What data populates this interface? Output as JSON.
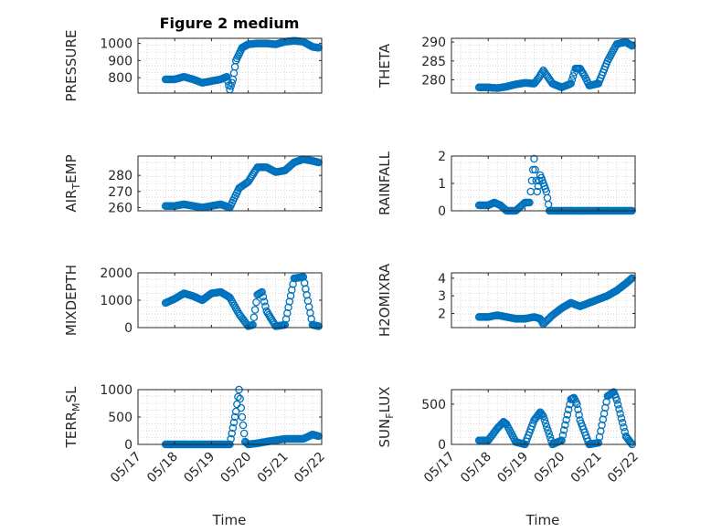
{
  "figure_title": "Figure 2 medium",
  "xlabel": "Time",
  "x_ticks": [
    "05/17",
    "05/18",
    "05/19",
    "05/20",
    "05/21",
    "05/22"
  ],
  "marker_color": "#0072BD",
  "chart_data": [
    {
      "type": "scatter",
      "ylabel": "PRESSURE",
      "ylim": [
        710,
        1030
      ],
      "yticks": [
        "1000",
        "900",
        "800"
      ],
      "ytick_values": [
        1000,
        900,
        800
      ],
      "xlim": [
        "05/17",
        "05/22"
      ],
      "grid": true,
      "x": [
        "05/17 18:00",
        "05/18 00:00",
        "05/18 06:00",
        "05/18 12:00",
        "05/18 18:00",
        "05/19 00:00",
        "05/19 06:00",
        "05/19 10:00",
        "05/19 12:00",
        "05/19 14:00",
        "05/19 16:00",
        "05/19 20:00",
        "05/20 00:00",
        "05/20 06:00",
        "05/20 12:00",
        "05/20 18:00",
        "05/21 00:00",
        "05/21 06:00",
        "05/21 12:00",
        "05/21 18:00",
        "05/21 22:00"
      ],
      "values": [
        790,
        790,
        805,
        790,
        770,
        780,
        790,
        805,
        730,
        790,
        900,
        975,
        995,
        1000,
        1000,
        995,
        1010,
        1015,
        1010,
        980,
        975
      ]
    },
    {
      "type": "scatter",
      "ylabel": "THETA",
      "ylim": [
        276.5,
        291
      ],
      "yticks": [
        "290",
        "285",
        "280"
      ],
      "ytick_values": [
        290,
        285,
        280
      ],
      "xlim": [
        "05/17",
        "05/22"
      ],
      "grid": true,
      "x": [
        "05/17 18:00",
        "05/18 00:00",
        "05/18 06:00",
        "05/18 12:00",
        "05/18 18:00",
        "05/19 00:00",
        "05/19 06:00",
        "05/19 09:00",
        "05/19 12:00",
        "05/19 18:00",
        "05/20 00:00",
        "05/20 06:00",
        "05/20 09:00",
        "05/20 12:00",
        "05/20 15:00",
        "05/20 18:00",
        "05/21 00:00",
        "05/21 06:00",
        "05/21 12:00",
        "05/21 18:00",
        "05/21 22:00"
      ],
      "values": [
        278,
        278,
        277.8,
        278.2,
        278.8,
        279.2,
        279,
        280.5,
        282.5,
        279,
        278,
        279,
        283,
        283,
        281,
        278.5,
        279,
        285,
        289.5,
        290,
        289
      ]
    },
    {
      "type": "scatter",
      "ylabel": "AIR_TEMP",
      "ylim": [
        258,
        292
      ],
      "yticks": [
        "280",
        "270",
        "260"
      ],
      "ytick_values": [
        280,
        270,
        260
      ],
      "xlim": [
        "05/17",
        "05/22"
      ],
      "grid": true,
      "x": [
        "05/17 18:00",
        "05/18 00:00",
        "05/18 06:00",
        "05/18 12:00",
        "05/18 18:00",
        "05/19 00:00",
        "05/19 06:00",
        "05/19 12:00",
        "05/19 18:00",
        "05/20 00:00",
        "05/20 06:00",
        "05/20 12:00",
        "05/20 18:00",
        "05/21 00:00",
        "05/21 06:00",
        "05/21 12:00",
        "05/21 18:00",
        "05/21 22:00"
      ],
      "values": [
        261,
        261,
        262,
        261,
        260,
        261,
        262,
        260,
        272,
        276,
        285,
        285,
        282,
        283,
        288,
        290,
        289,
        288
      ]
    },
    {
      "type": "scatter",
      "ylabel": "RAINFALL",
      "ylim": [
        0,
        2
      ],
      "yticks": [
        "2",
        "1",
        "0"
      ],
      "ytick_values": [
        2,
        1,
        0
      ],
      "xlim": [
        "05/17",
        "05/22"
      ],
      "grid": true,
      "x": [
        "05/17 18:00",
        "05/18 00:00",
        "05/18 04:00",
        "05/18 08:00",
        "05/18 12:00",
        "05/18 18:00",
        "05/19 00:00",
        "05/19 03:00",
        "05/19 06:00",
        "05/19 08:00",
        "05/19 10:00",
        "05/19 12:00",
        "05/19 14:00",
        "05/19 16:00",
        "05/19 18:00",
        "05/20 00:00",
        "05/20 12:00",
        "05/21 00:00",
        "05/21 12:00",
        "05/21 22:00"
      ],
      "values": [
        0.2,
        0.2,
        0.3,
        0.2,
        0,
        0,
        0.3,
        0.3,
        1.9,
        0.7,
        1.3,
        1.0,
        0.7,
        0,
        0,
        0,
        0,
        0,
        0,
        0
      ]
    },
    {
      "type": "scatter",
      "ylabel": "MIXDEPTH",
      "ylim": [
        0,
        2000
      ],
      "yticks": [
        "2000",
        "1000",
        "0"
      ],
      "ytick_values": [
        2000,
        1000,
        0
      ],
      "xlim": [
        "05/17",
        "05/22"
      ],
      "grid": true,
      "x": [
        "05/17 18:00",
        "05/18 00:00",
        "05/18 06:00",
        "05/18 12:00",
        "05/18 18:00",
        "05/19 00:00",
        "05/19 06:00",
        "05/19 12:00",
        "05/19 18:00",
        "05/20 00:00",
        "05/20 03:00",
        "05/20 06:00",
        "05/20 09:00",
        "05/20 12:00",
        "05/20 18:00",
        "05/21 00:00",
        "05/21 06:00",
        "05/21 12:00",
        "05/21 18:00",
        "05/21 22:00"
      ],
      "values": [
        900,
        1050,
        1250,
        1150,
        1000,
        1250,
        1300,
        1100,
        500,
        50,
        100,
        1200,
        1300,
        600,
        50,
        100,
        1800,
        1850,
        100,
        50
      ]
    },
    {
      "type": "scatter",
      "ylabel": "H2OMIXRA",
      "ylim": [
        1.2,
        4.3
      ],
      "yticks": [
        "4",
        "3",
        "2"
      ],
      "ytick_values": [
        4,
        3,
        2
      ],
      "xlim": [
        "05/17",
        "05/22"
      ],
      "grid": true,
      "x": [
        "05/17 18:00",
        "05/18 00:00",
        "05/18 06:00",
        "05/18 12:00",
        "05/18 18:00",
        "05/19 00:00",
        "05/19 06:00",
        "05/19 10:00",
        "05/19 12:00",
        "05/19 18:00",
        "05/20 00:00",
        "05/20 06:00",
        "05/20 12:00",
        "05/20 18:00",
        "05/21 00:00",
        "05/21 06:00",
        "05/21 12:00",
        "05/21 18:00",
        "05/21 22:00"
      ],
      "values": [
        1.8,
        1.8,
        1.9,
        1.8,
        1.7,
        1.7,
        1.8,
        1.7,
        1.4,
        1.9,
        2.3,
        2.6,
        2.4,
        2.6,
        2.8,
        3.0,
        3.3,
        3.7,
        4.0
      ]
    },
    {
      "type": "scatter",
      "ylabel": "TERR_MSL",
      "ylim": [
        0,
        1000
      ],
      "yticks": [
        "1000",
        "500",
        "0"
      ],
      "ytick_values": [
        1000,
        500,
        0
      ],
      "xlim": [
        "05/17",
        "05/22"
      ],
      "grid": true,
      "x": [
        "05/17 18:00",
        "05/18 00:00",
        "05/18 12:00",
        "05/19 00:00",
        "05/19 12:00",
        "05/19 16:00",
        "05/19 18:00",
        "05/19 20:00",
        "05/19 22:00",
        "05/20 00:00",
        "05/20 06:00",
        "05/20 12:00",
        "05/21 00:00",
        "05/21 12:00",
        "05/21 18:00",
        "05/21 22:00"
      ],
      "values": [
        0,
        0,
        0,
        0,
        0,
        600,
        1000,
        500,
        50,
        0,
        20,
        50,
        100,
        100,
        180,
        150
      ]
    },
    {
      "type": "scatter",
      "ylabel": "SUN_FLUX",
      "ylim": [
        0,
        680
      ],
      "yticks": [
        "500",
        "0"
      ],
      "ytick_values": [
        500,
        0
      ],
      "xlim": [
        "05/17",
        "05/22"
      ],
      "grid": true,
      "x": [
        "05/17 18:00",
        "05/18 00:00",
        "05/18 06:00",
        "05/18 10:00",
        "05/18 12:00",
        "05/18 18:00",
        "05/19 00:00",
        "05/19 06:00",
        "05/19 10:00",
        "05/19 12:00",
        "05/19 18:00",
        "05/20 00:00",
        "05/20 06:00",
        "05/20 08:00",
        "05/20 10:00",
        "05/20 12:00",
        "05/20 18:00",
        "05/21 00:00",
        "05/21 06:00",
        "05/21 10:00",
        "05/21 12:00",
        "05/21 18:00",
        "05/21 22:00"
      ],
      "values": [
        50,
        50,
        200,
        280,
        250,
        30,
        0,
        300,
        400,
        350,
        0,
        50,
        560,
        580,
        500,
        300,
        0,
        20,
        600,
        650,
        550,
        100,
        0
      ]
    }
  ]
}
